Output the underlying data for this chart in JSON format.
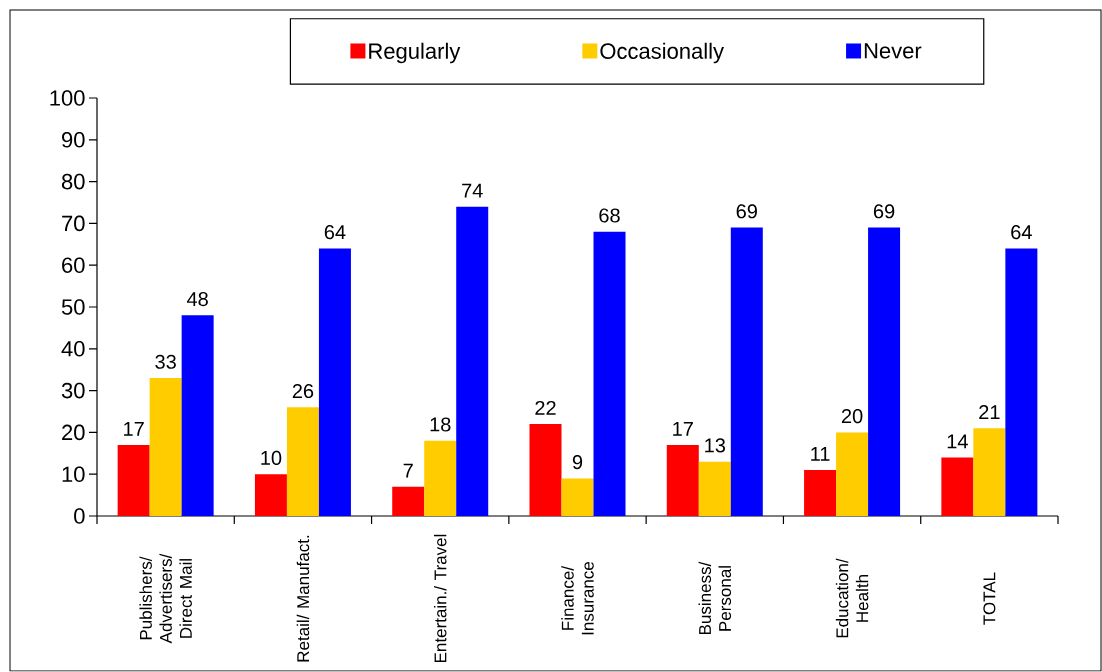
{
  "chart_data": {
    "type": "bar",
    "categories": [
      "Publishers/ Advertisers/ Direct Mail",
      "Retail/ Manufact.",
      "Entertain./ Travel",
      "Finance/ Insurance",
      "Business/ Personal",
      "Education/ Health",
      "TOTAL"
    ],
    "series": [
      {
        "name": "Regularly",
        "color": "#ff0000",
        "values": [
          17,
          10,
          7,
          22,
          17,
          11,
          14
        ]
      },
      {
        "name": "Occasionally",
        "color": "#ffcc00",
        "values": [
          33,
          26,
          18,
          9,
          13,
          20,
          21
        ]
      },
      {
        "name": "Never",
        "color": "#0000ff",
        "values": [
          48,
          64,
          74,
          68,
          69,
          69,
          64
        ]
      }
    ],
    "ylim": [
      0,
      100
    ],
    "yticks": [
      0,
      10,
      20,
      30,
      40,
      50,
      60,
      70,
      80,
      90,
      100
    ],
    "legend": "top",
    "data_labels": true
  }
}
